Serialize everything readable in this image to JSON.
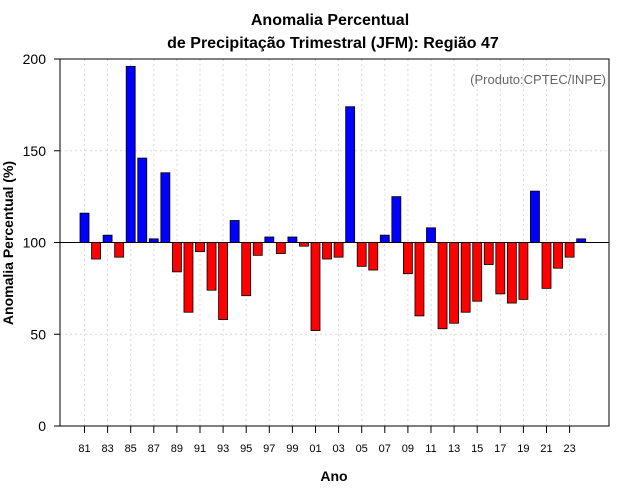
{
  "chart_data": {
    "type": "bar",
    "title": "Anomalia Percentual",
    "subtitle": "de Precipitação Trimestral (JFM): Região 47",
    "xlabel": "Ano",
    "ylabel": "Anomalia Percentual (%)",
    "annotation": "(Produto:CPTEC/INPE)",
    "ylim": [
      0,
      200
    ],
    "yticks": [
      "0",
      "50",
      "100",
      "150",
      "200"
    ],
    "baseline": 100,
    "grid": true,
    "colors": {
      "above": "#0000ff",
      "below": "#ff0000",
      "edge": "#000000",
      "grid": "#d9d9d9"
    },
    "categories": [
      "81",
      "82",
      "83",
      "84",
      "85",
      "86",
      "87",
      "88",
      "89",
      "90",
      "91",
      "92",
      "93",
      "94",
      "95",
      "96",
      "97",
      "98",
      "99",
      "00",
      "01",
      "02",
      "03",
      "04",
      "05",
      "06",
      "07",
      "08",
      "09",
      "10",
      "11",
      "12",
      "13",
      "14",
      "15",
      "16",
      "17",
      "18",
      "19",
      "20",
      "21",
      "22",
      "23",
      "24"
    ],
    "xtick_labels": [
      "81",
      "83",
      "85",
      "87",
      "89",
      "91",
      "93",
      "95",
      "97",
      "99",
      "01",
      "03",
      "05",
      "07",
      "09",
      "11",
      "13",
      "15",
      "17",
      "19",
      "21",
      "23"
    ],
    "values": [
      116,
      91,
      104,
      92,
      196,
      146,
      102,
      138,
      84,
      62,
      95,
      74,
      58,
      112,
      71,
      93,
      103,
      94,
      103,
      98,
      52,
      91,
      92,
      174,
      87,
      85,
      104,
      125,
      83,
      60,
      108,
      53,
      56,
      62,
      68,
      88,
      72,
      67,
      69,
      128,
      75,
      86,
      92,
      102
    ]
  }
}
